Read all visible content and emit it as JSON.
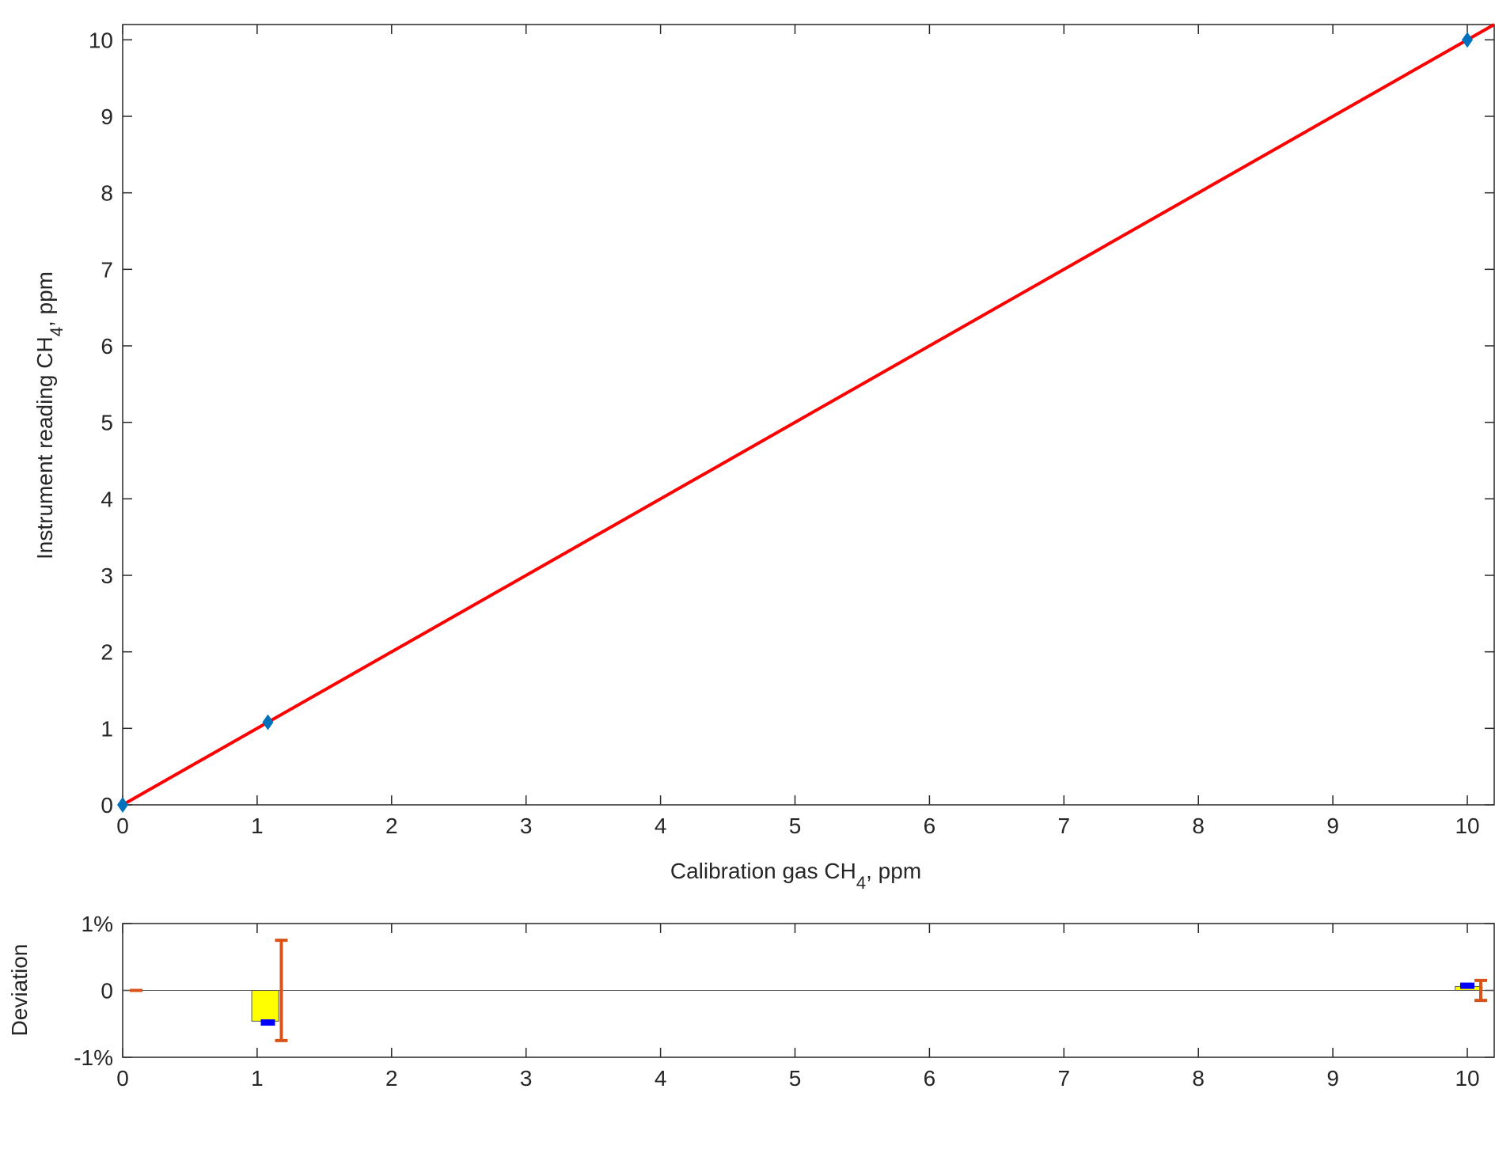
{
  "chart_data": [
    {
      "type": "scatter",
      "x_label": [
        "Calibration gas CH",
        "4",
        ", ppm"
      ],
      "y_label": [
        "Instrument reading CH",
        "4",
        ", ppm"
      ],
      "xlim": [
        0,
        10.2
      ],
      "ylim": [
        0,
        10.2
      ],
      "xticks": [
        0,
        1,
        2,
        3,
        4,
        5,
        6,
        7,
        8,
        9,
        10
      ],
      "yticks": [
        0,
        1,
        2,
        3,
        4,
        5,
        6,
        7,
        8,
        9,
        10
      ],
      "points": {
        "color": "#0072bd",
        "x": [
          0,
          1.08,
          10
        ],
        "y": [
          0,
          1.08,
          10
        ]
      },
      "fit_line": {
        "color": "#ff0000",
        "x": [
          0,
          10.2
        ],
        "y": [
          0,
          10.2
        ]
      }
    },
    {
      "type": "deviation",
      "y_label": "Deviation",
      "xlim": [
        0,
        10.2
      ],
      "ylim": [
        -1,
        1
      ],
      "xticks": [
        0,
        1,
        2,
        3,
        4,
        5,
        6,
        7,
        8,
        9,
        10
      ],
      "yticks": [
        {
          "value": -1,
          "label": "-1%"
        },
        0,
        {
          "value": 1,
          "label": "1%"
        }
      ],
      "bars": {
        "color": "#ffff00",
        "x": [
          1.06,
          10.01
        ],
        "width": 0.2,
        "values": [
          -0.46,
          0.06
        ]
      },
      "markers": {
        "color": "#0000ff",
        "x": [
          1.08,
          10.0
        ],
        "values": [
          -0.48,
          0.07
        ]
      },
      "error_bars": {
        "color": "#d95319",
        "x": [
          0.1,
          1.18,
          10.1
        ],
        "values": [
          0,
          0,
          0
        ],
        "errors": [
          0,
          0.75,
          0.15
        ]
      }
    }
  ]
}
